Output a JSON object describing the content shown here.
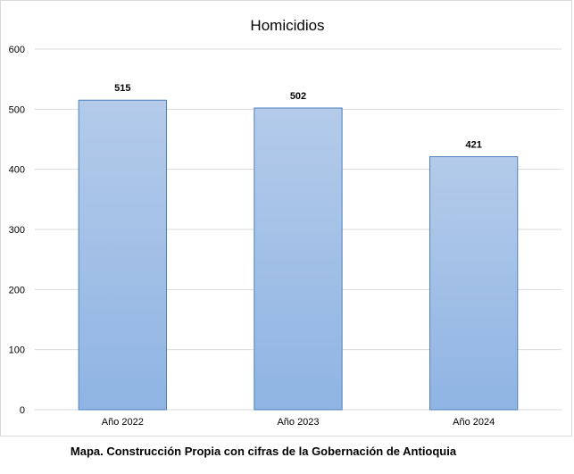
{
  "chart_data": {
    "type": "bar",
    "title": "Homicidios",
    "categories": [
      "Año 2022",
      "Año 2023",
      "Año 2024"
    ],
    "values": [
      515,
      502,
      421
    ],
    "xlabel": "",
    "ylabel": "",
    "ylim": [
      0,
      600
    ],
    "yticks": [
      0,
      100,
      200,
      300,
      400,
      500,
      600
    ],
    "grid": true,
    "legend": "none",
    "bar_color_top": "#b4cbea",
    "bar_color_bottom": "#8fb4e3",
    "bar_border_color": "#4f81bd",
    "grid_color": "#d9d9d9"
  },
  "caption": "Mapa. Construcción Propia con cifras de la Gobernación de Antioquia"
}
